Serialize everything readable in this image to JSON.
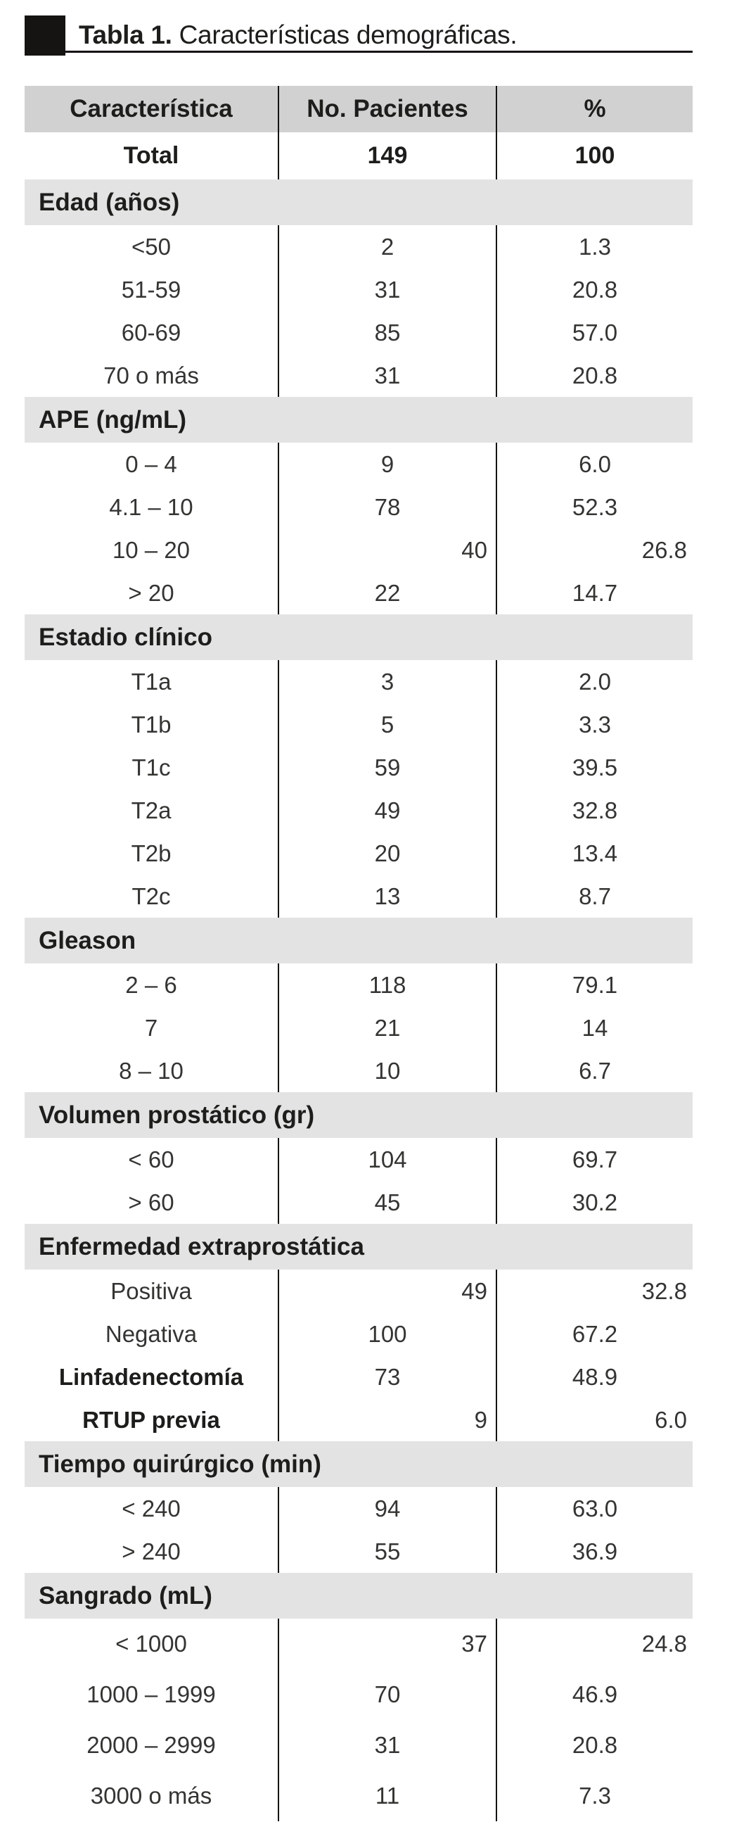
{
  "title": {
    "prefix": "Tabla 1.",
    "rest": " Características demográficas."
  },
  "colors": {
    "text_bold": "#1d1d1b",
    "text_body": "#343432",
    "header_bg": "#d1d1d1",
    "band_bg": "#e3e3e3",
    "line_black": "#161412"
  },
  "table": {
    "columns": [
      "Característica",
      "No. Pacientes",
      "%"
    ],
    "total": {
      "label": "Total",
      "n": "149",
      "pct": "100"
    },
    "sections": [
      {
        "label": "Edad (años)",
        "rows": [
          {
            "label": "<50",
            "n": "2",
            "pct": "1.3"
          },
          {
            "label": "51-59",
            "n": "31",
            "pct": "20.8"
          },
          {
            "label": "60-69",
            "n": "85",
            "pct": "57.0"
          },
          {
            "label": "70 o más",
            "n": "31",
            "pct": "20.8"
          }
        ]
      },
      {
        "label": "APE (ng/mL)",
        "rows": [
          {
            "label": "0 – 4",
            "n": "9",
            "pct": "6.0"
          },
          {
            "label": "4.1 – 10",
            "n": "78",
            "pct": "52.3"
          },
          {
            "label": "10 – 20",
            "n": "40",
            "pct": "26.8",
            "align": "right"
          },
          {
            "label": "> 20",
            "n": "22",
            "pct": "14.7"
          }
        ]
      },
      {
        "label": "Estadio clínico",
        "rows": [
          {
            "label": "T1a",
            "n": "3",
            "pct": "2.0"
          },
          {
            "label": "T1b",
            "n": "5",
            "pct": "3.3"
          },
          {
            "label": "T1c",
            "n": "59",
            "pct": "39.5"
          },
          {
            "label": "T2a",
            "n": "49",
            "pct": "32.8"
          },
          {
            "label": "T2b",
            "n": "20",
            "pct": "13.4"
          },
          {
            "label": "T2c",
            "n": "13",
            "pct": "8.7"
          }
        ]
      },
      {
        "label": "Gleason",
        "rows": [
          {
            "label": "2 – 6",
            "n": "118",
            "pct": "79.1"
          },
          {
            "label": "7",
            "n": "21",
            "pct": "14"
          },
          {
            "label": "8 – 10",
            "n": "10",
            "pct": "6.7"
          }
        ]
      },
      {
        "label": "Volumen prostático (gr)",
        "rows": [
          {
            "label": "< 60",
            "n": "104",
            "pct": "69.7"
          },
          {
            "label": "> 60",
            "n": "45",
            "pct": "30.2"
          }
        ]
      },
      {
        "label": "Enfermedad extraprostática",
        "rows": [
          {
            "label": "Positiva",
            "n": "49",
            "pct": "32.8",
            "align": "right"
          },
          {
            "label": "Negativa",
            "n": "100",
            "pct": "67.2"
          },
          {
            "label": "Linfadenectomía",
            "n": "73",
            "pct": "48.9",
            "bold_label": true
          },
          {
            "label": "RTUP previa",
            "n": "9",
            "pct": "6.0",
            "align": "right",
            "bold_label": true
          }
        ]
      },
      {
        "label": "Tiempo quirúrgico (min)",
        "rows": [
          {
            "label": "< 240",
            "n": "94",
            "pct": "63.0"
          },
          {
            "label": "> 240",
            "n": "55",
            "pct": "36.9"
          }
        ]
      },
      {
        "label": "Sangrado (mL)",
        "tall": true,
        "rows": [
          {
            "label": "< 1000",
            "n": "37",
            "pct": "24.8",
            "align": "right"
          },
          {
            "label": "1000 – 1999",
            "n": "70",
            "pct": "46.9"
          },
          {
            "label": "2000 – 2999",
            "n": "31",
            "pct": "20.8"
          },
          {
            "label": "3000 o más",
            "n": "11",
            "pct": "7.3"
          }
        ]
      }
    ]
  }
}
